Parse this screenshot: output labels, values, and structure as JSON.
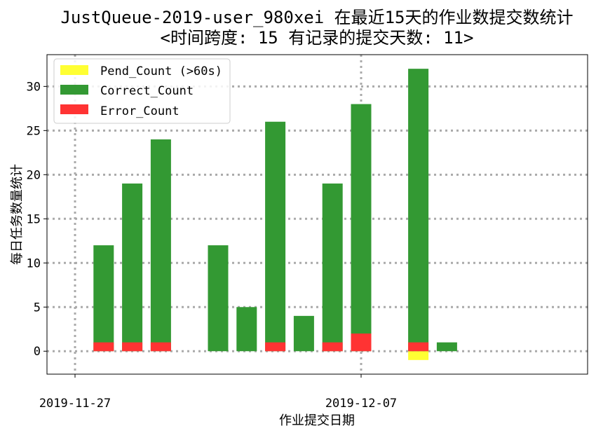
{
  "chart_data": {
    "type": "bar",
    "title": "JustQueue-2019-user_980xei 在最近15天的作业数提交数统计",
    "subtitle": "<时间跨度: 15  有记录的提交天数: 11>",
    "xlabel": "作业提交日期",
    "ylabel": "每日任务数量统计",
    "x_tick_labels": [
      "2019-11-27",
      "2019-12-07"
    ],
    "x_tick_days": [
      0,
      10
    ],
    "yticks": [
      0,
      5,
      10,
      15,
      20,
      25,
      30
    ],
    "ylim": [
      -2.6,
      33.6
    ],
    "xlim_days": [
      -1,
      18
    ],
    "grid": true,
    "legend_position": "top-left",
    "series": [
      {
        "name": "Pend_Count (>60s)",
        "color": "#ffff33",
        "day": [
          12
        ],
        "values": [
          -1
        ]
      },
      {
        "name": "Correct_Count",
        "color": "#339933",
        "day": [
          1,
          2,
          3,
          5,
          6,
          7,
          8,
          9,
          10,
          12,
          13
        ],
        "values": [
          12,
          19,
          24,
          12,
          5,
          26,
          4,
          19,
          28,
          32,
          1
        ]
      },
      {
        "name": "Error_Count",
        "color": "#ff3333",
        "day": [
          1,
          2,
          3,
          7,
          9,
          10,
          12
        ],
        "values": [
          1,
          1,
          1,
          1,
          1,
          2,
          1
        ]
      }
    ]
  }
}
